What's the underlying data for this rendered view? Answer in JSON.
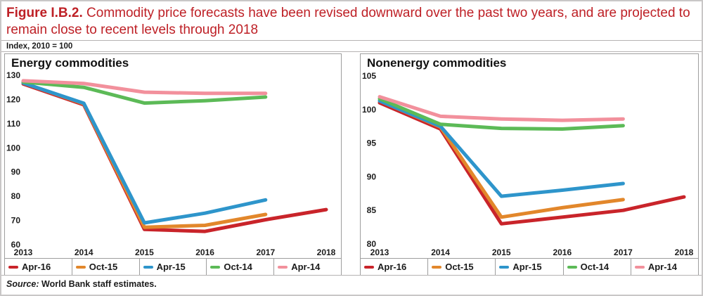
{
  "figure": {
    "label": "Figure I.B.2.",
    "title": "Commodity price forecasts have been revised downward over the past two years, and are projected to remain close to recent levels through 2018",
    "index_note": "Index, 2010 = 100",
    "source_label": "Source:",
    "source_text": "World Bank staff estimates."
  },
  "colors": {
    "title_red": "#be2026",
    "panel_border_gray": "#9e9e9e",
    "apr16_red": "#c9242a",
    "oct15_orange": "#e2872b",
    "apr15_blue": "#2e95cb",
    "oct14_green": "#5cba57",
    "apr14_pink": "#f2909c"
  },
  "chart_data": [
    {
      "type": "line",
      "title": "Energy commodities",
      "x": [
        2013,
        2014,
        2015,
        2016,
        2017,
        2018
      ],
      "ylim": [
        60,
        130
      ],
      "yticks": [
        130,
        120,
        110,
        100,
        90,
        80,
        70,
        60
      ],
      "grid": false,
      "axis_lines": false,
      "legend_position": "bottom",
      "legend": [
        "Apr-16",
        "Oct-15",
        "Apr-15",
        "Oct-14",
        "Apr-14"
      ],
      "series": [
        {
          "name": "Apr-16",
          "color": "#c9242a",
          "values": [
            126.4,
            117.8,
            66.3,
            65.5,
            70.3,
            74.5
          ]
        },
        {
          "name": "Oct-15",
          "color": "#e2872b",
          "values": [
            126.8,
            118.2,
            67.2,
            68.0,
            72.5,
            null
          ]
        },
        {
          "name": "Apr-15",
          "color": "#2e95cb",
          "values": [
            126.8,
            118.4,
            69.0,
            73.0,
            78.5,
            null
          ]
        },
        {
          "name": "Oct-14",
          "color": "#5cba57",
          "values": [
            127.2,
            125.0,
            118.5,
            119.5,
            121.0,
            null
          ]
        },
        {
          "name": "Apr-14",
          "color": "#f2909c",
          "values": [
            127.7,
            126.6,
            123.0,
            122.5,
            122.5,
            null
          ]
        }
      ]
    },
    {
      "type": "line",
      "title": "Nonenergy commodities",
      "x": [
        2013,
        2014,
        2015,
        2016,
        2017,
        2018
      ],
      "ylim": [
        80,
        105
      ],
      "yticks": [
        105,
        100,
        95,
        90,
        85,
        80
      ],
      "grid": false,
      "axis_lines": false,
      "legend_position": "bottom",
      "legend": [
        "Apr-16",
        "Oct-15",
        "Apr-15",
        "Oct-14",
        "Apr-14"
      ],
      "series": [
        {
          "name": "Apr-16",
          "color": "#c9242a",
          "values": [
            101.0,
            97.1,
            83.0,
            84.0,
            85.0,
            87.0
          ]
        },
        {
          "name": "Oct-15",
          "color": "#e2872b",
          "values": [
            101.3,
            97.4,
            84.0,
            85.4,
            86.6,
            null
          ]
        },
        {
          "name": "Apr-15",
          "color": "#2e95cb",
          "values": [
            101.3,
            97.5,
            87.1,
            88.0,
            89.0,
            null
          ]
        },
        {
          "name": "Oct-14",
          "color": "#5cba57",
          "values": [
            101.6,
            97.8,
            97.2,
            97.1,
            97.6,
            null
          ]
        },
        {
          "name": "Apr-14",
          "color": "#f2909c",
          "values": [
            101.9,
            99.0,
            98.6,
            98.4,
            98.6,
            null
          ]
        }
      ]
    }
  ]
}
